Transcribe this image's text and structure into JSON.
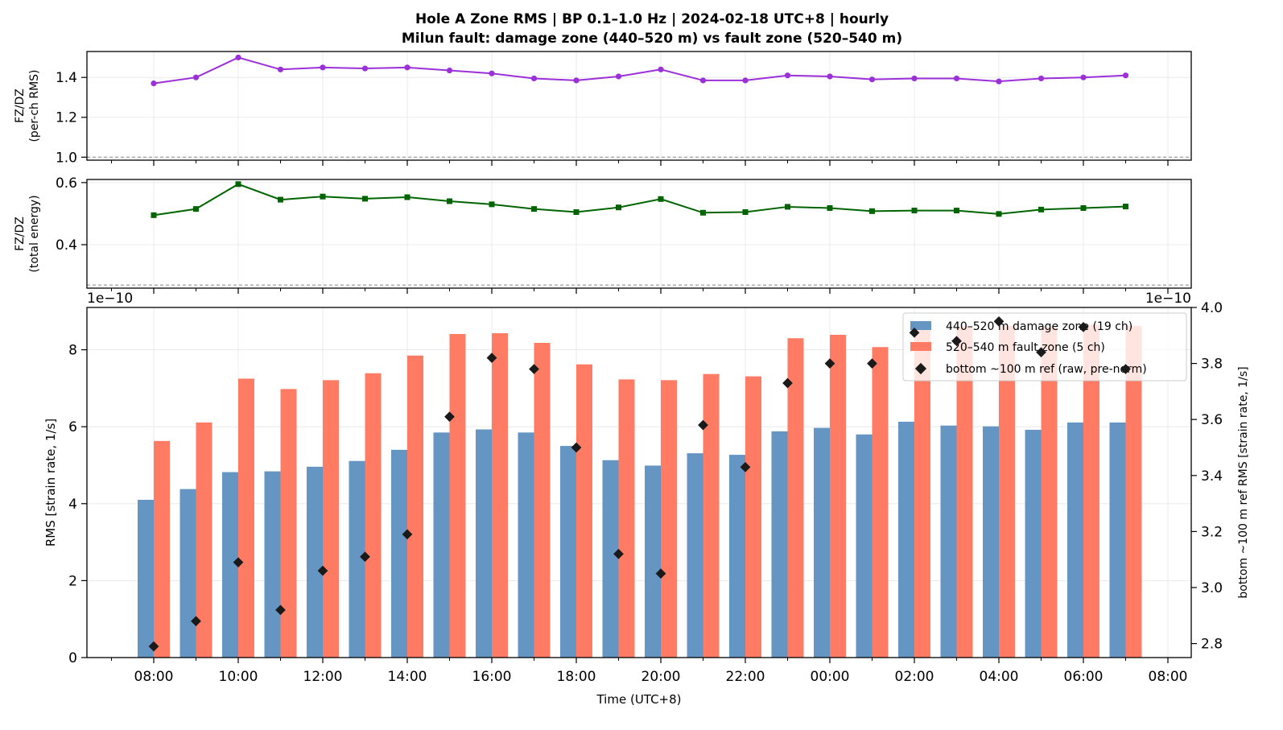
{
  "title_line1": "Hole A Zone RMS  |  BP 0.1–1.0 Hz  |  2024-02-18 UTC+8  |  hourly",
  "title_line2": "Milun fault: damage zone (440–520 m) vs fault zone (520–540 m)",
  "chart_data": [
    {
      "type": "line",
      "ylabel": "FZ/DZ\n(per-ch RMS)",
      "ylim": [
        0.985,
        1.53
      ],
      "yticks": [
        1.0,
        1.2,
        1.4
      ],
      "reference_line": 1.0,
      "color": "#9b30d9",
      "marker": "circle",
      "x": [
        "08:00",
        "09:00",
        "10:00",
        "11:00",
        "12:00",
        "13:00",
        "14:00",
        "15:00",
        "16:00",
        "17:00",
        "18:00",
        "19:00",
        "20:00",
        "21:00",
        "22:00",
        "23:00",
        "00:00",
        "01:00",
        "02:00",
        "03:00",
        "04:00",
        "05:00",
        "06:00",
        "07:00"
      ],
      "values": [
        1.37,
        1.4,
        1.5,
        1.44,
        1.45,
        1.445,
        1.45,
        1.435,
        1.42,
        1.395,
        1.385,
        1.405,
        1.44,
        1.385,
        1.385,
        1.41,
        1.405,
        1.39,
        1.395,
        1.395,
        1.38,
        1.395,
        1.4,
        1.41
      ]
    },
    {
      "type": "line",
      "ylabel": "FZ/DZ\n(total energy)",
      "ylim": [
        0.26,
        0.61
      ],
      "yticks": [
        0.4,
        0.6
      ],
      "reference_line": 0.27,
      "color": "#006400",
      "marker": "square",
      "x": [
        "08:00",
        "09:00",
        "10:00",
        "11:00",
        "12:00",
        "13:00",
        "14:00",
        "15:00",
        "16:00",
        "17:00",
        "18:00",
        "19:00",
        "20:00",
        "21:00",
        "22:00",
        "23:00",
        "00:00",
        "01:00",
        "02:00",
        "03:00",
        "04:00",
        "05:00",
        "06:00",
        "07:00"
      ],
      "values": [
        0.495,
        0.515,
        0.595,
        0.545,
        0.555,
        0.548,
        0.553,
        0.54,
        0.53,
        0.515,
        0.505,
        0.52,
        0.547,
        0.503,
        0.505,
        0.522,
        0.518,
        0.508,
        0.51,
        0.51,
        0.499,
        0.513,
        0.518,
        0.523
      ]
    },
    {
      "type": "bar",
      "xlabel": "Time (UTC+8)",
      "ylabel": "RMS  [strain rate, 1/s]",
      "y2label": "bottom ~100 m ref RMS  [strain rate, 1/s]",
      "ylim": [
        0,
        9.1
      ],
      "y2lim": [
        2.75,
        4.0
      ],
      "yticks": [
        0,
        2,
        4,
        6,
        8
      ],
      "y2ticks": [
        2.8,
        3.0,
        3.2,
        3.4,
        3.6,
        3.8,
        4.0
      ],
      "offset_left": "1e−10",
      "offset_right": "1e−10",
      "xticks": [
        "08:00",
        "10:00",
        "12:00",
        "14:00",
        "16:00",
        "18:00",
        "20:00",
        "22:00",
        "00:00",
        "02:00",
        "04:00",
        "06:00",
        "08:00"
      ],
      "legend_position": "upper right",
      "grid": true,
      "x": [
        "08:00",
        "09:00",
        "10:00",
        "11:00",
        "12:00",
        "13:00",
        "14:00",
        "15:00",
        "16:00",
        "17:00",
        "18:00",
        "19:00",
        "20:00",
        "21:00",
        "22:00",
        "23:00",
        "00:00",
        "01:00",
        "02:00",
        "03:00",
        "04:00",
        "05:00",
        "06:00",
        "07:00"
      ],
      "series": [
        {
          "name": "440–520 m  damage zone (19 ch)",
          "color": "#6495c3",
          "axis": "left",
          "values": [
            4.1,
            4.38,
            4.82,
            4.84,
            4.96,
            5.11,
            5.4,
            5.85,
            5.93,
            5.85,
            5.5,
            5.13,
            4.99,
            5.31,
            5.27,
            5.88,
            5.97,
            5.8,
            6.13,
            6.03,
            6.01,
            5.92,
            6.11,
            6.11
          ]
        },
        {
          "name": "520–540 m  fault zone (5 ch)",
          "color": "#ff7b63",
          "axis": "left",
          "values": [
            5.63,
            6.11,
            7.25,
            6.98,
            7.21,
            7.39,
            7.85,
            8.41,
            8.43,
            8.18,
            7.62,
            7.23,
            7.21,
            7.37,
            7.31,
            8.3,
            8.39,
            8.07,
            8.55,
            8.6,
            8.62,
            8.6,
            8.65,
            8.62
          ]
        },
        {
          "name": "bottom ~100 m ref (raw, pre-norm)",
          "color": "#1a1a1a",
          "axis": "right",
          "marker": "diamond",
          "values": [
            2.79,
            2.88,
            3.09,
            2.92,
            3.06,
            3.11,
            3.19,
            3.61,
            3.82,
            3.78,
            3.5,
            3.12,
            3.05,
            3.58,
            3.43,
            3.73,
            3.8,
            3.8,
            3.91,
            3.88,
            3.95,
            3.84,
            3.93,
            3.78
          ]
        }
      ]
    }
  ]
}
